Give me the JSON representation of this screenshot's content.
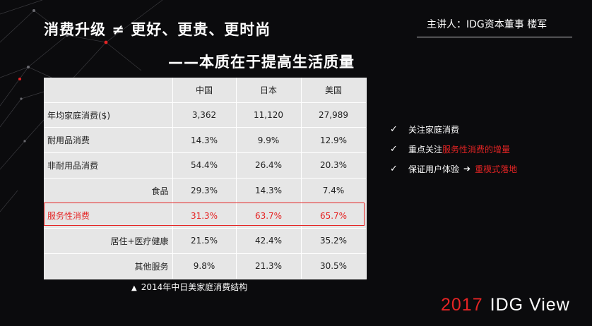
{
  "title": "消费升级 ≠ 更好、更贵、更时尚",
  "subtitle": "——本质在于提高生活质量",
  "speaker": "主讲人：IDG资本董事  楼军",
  "table": {
    "headers": [
      "",
      "中国",
      "日本",
      "美国"
    ],
    "rows": [
      {
        "label": "年均家庭消费($)",
        "values": [
          "3,362",
          "11,120",
          "27,989"
        ],
        "align": "left"
      },
      {
        "label": "耐用品消费",
        "values": [
          "14.3%",
          "9.9%",
          "12.9%"
        ],
        "align": "left"
      },
      {
        "label": "非耐用品消费",
        "values": [
          "54.4%",
          "26.4%",
          "20.3%"
        ],
        "align": "left"
      },
      {
        "label": "食品",
        "values": [
          "29.3%",
          "14.3%",
          "7.4%"
        ],
        "align": "right"
      },
      {
        "label": "服务性消费",
        "values": [
          "31.3%",
          "63.7%",
          "65.7%"
        ],
        "align": "left",
        "highlight": true
      },
      {
        "label": "居住+医疗健康",
        "values": [
          "21.5%",
          "42.4%",
          "35.2%"
        ],
        "align": "right"
      },
      {
        "label": "其他服务",
        "values": [
          "9.8%",
          "21.3%",
          "30.5%"
        ],
        "align": "right"
      }
    ]
  },
  "caption": "2014年中日美家庭消费结构",
  "bullets": [
    {
      "parts": [
        {
          "text": "关注家庭消费",
          "red": false
        }
      ]
    },
    {
      "parts": [
        {
          "text": "重点关注",
          "red": false
        },
        {
          "text": "服务性消费的增量",
          "red": true
        }
      ]
    },
    {
      "parts": [
        {
          "text": "保证用户体验",
          "red": false
        },
        {
          "text": "➔",
          "red": false,
          "arrow": true
        },
        {
          "text": "重模式落地",
          "red": true
        }
      ]
    }
  ],
  "brand": {
    "year": "2017",
    "name": "IDG View"
  },
  "colors": {
    "accent": "#e52424",
    "background": "#0b0b0d",
    "table_bg": "#e6e6e6"
  }
}
